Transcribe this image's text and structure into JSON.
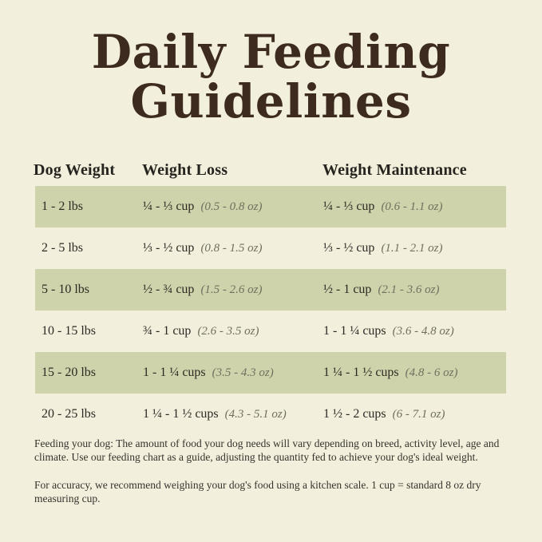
{
  "title": {
    "line1": "Daily Feeding",
    "line2": "Guidelines"
  },
  "table": {
    "headers": {
      "weight": "Dog Weight",
      "loss": "Weight Loss",
      "maintenance": "Weight Maintenance"
    },
    "rows": [
      {
        "weight": "1 - 2 lbs",
        "loss": "¼ - ⅓ cup",
        "loss_oz": "(0.5 - 0.8 oz)",
        "maint": "¼ - ⅓ cup",
        "maint_oz": "(0.6 - 1.1 oz)"
      },
      {
        "weight": "2 - 5 lbs",
        "loss": "⅓ - ½ cup",
        "loss_oz": "(0.8 - 1.5 oz)",
        "maint": "⅓ - ½ cup",
        "maint_oz": "(1.1 - 2.1 oz)"
      },
      {
        "weight": "5 - 10 lbs",
        "loss": "½ - ¾ cup",
        "loss_oz": "(1.5 - 2.6 oz)",
        "maint": "½ - 1 cup",
        "maint_oz": "(2.1 - 3.6 oz)"
      },
      {
        "weight": "10 - 15 lbs",
        "loss": "¾ - 1 cup",
        "loss_oz": "(2.6 - 3.5 oz)",
        "maint": "1 - 1 ¼ cups",
        "maint_oz": "(3.6 - 4.8 oz)"
      },
      {
        "weight": "15 - 20 lbs",
        "loss": "1 - 1 ¼ cups",
        "loss_oz": "(3.5 - 4.3 oz)",
        "maint": "1 ¼ - 1 ½ cups",
        "maint_oz": "(4.8 - 6 oz)"
      },
      {
        "weight": "20 - 25 lbs",
        "loss": "1 ¼ - 1 ½ cups",
        "loss_oz": "(4.3 - 5.1 oz)",
        "maint": "1 ½ - 2 cups",
        "maint_oz": "(6 - 7.1 oz)"
      }
    ]
  },
  "notes": {
    "feeding": "Feeding your dog: The amount of food your dog needs will vary depending on breed, activity level, age and climate. Use our feeding chart as a guide, adjusting the quantity fed to achieve your dog's ideal weight.",
    "accuracy": "For accuracy, we recommend weighing your dog's food using a kitchen scale. 1 cup = standard 8 oz dry measuring cup."
  },
  "colors": {
    "background": "#f2efdd",
    "row_highlight": "#cfd3ab",
    "title_text": "#3e2b20",
    "body_text": "#2c2a23",
    "muted_italic_text": "#6f705e"
  }
}
